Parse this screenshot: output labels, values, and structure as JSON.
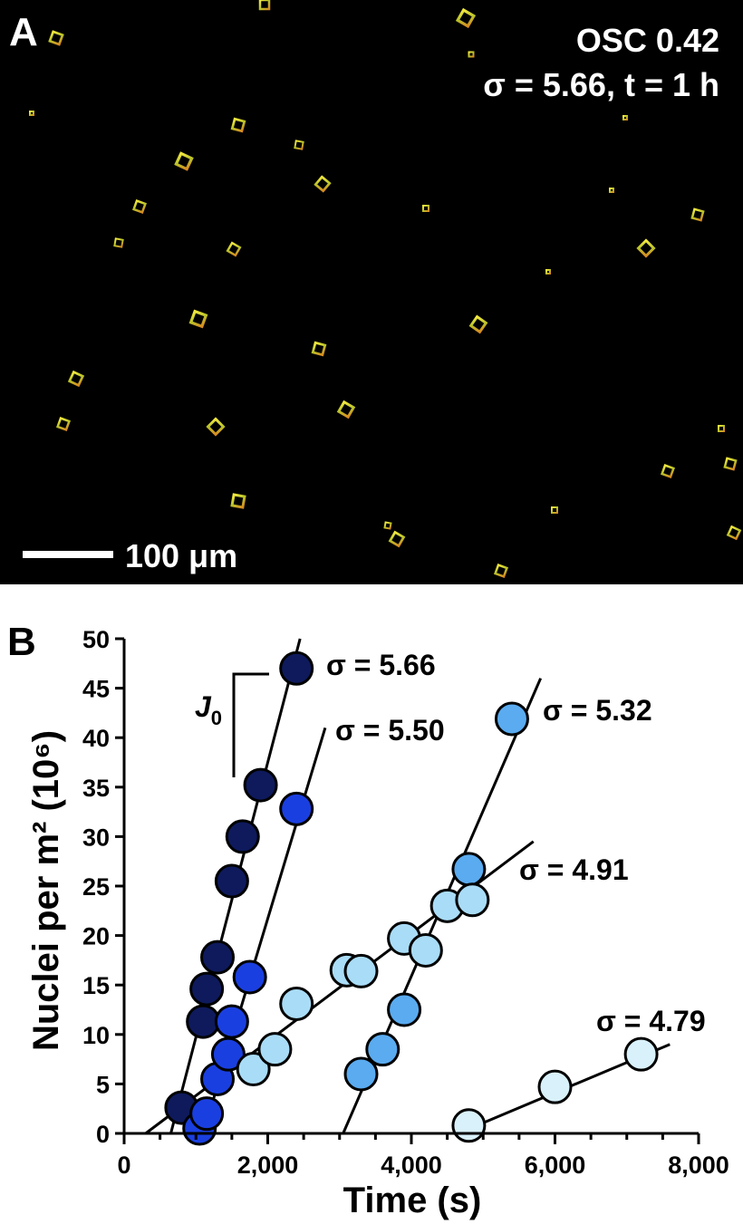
{
  "panel_a": {
    "label": "A",
    "sample": "OSC 0.42",
    "conditions": "σ = 5.66, t = 1 h",
    "scale_bar": "100 μm"
  },
  "panel_b": {
    "label": "B",
    "slope_label": "J",
    "slope_sub": "0"
  },
  "chart_data": {
    "type": "scatter",
    "xlabel": "Time (s)",
    "ylabel": "Nuclei per m² (10⁶)",
    "xlim": [
      0,
      8000
    ],
    "ylim": [
      0,
      50
    ],
    "xticks": [
      0,
      2000,
      4000,
      6000,
      8000
    ],
    "xtick_labels": [
      "0",
      "2,000",
      "4,000",
      "6,000",
      "8,000"
    ],
    "yticks": [
      0,
      5,
      10,
      15,
      20,
      25,
      30,
      35,
      40,
      45,
      50
    ],
    "grid": false,
    "series": [
      {
        "name": "σ = 5.66",
        "color": "#0e1a5c",
        "points": [
          [
            800,
            2.6
          ],
          [
            1100,
            11.3
          ],
          [
            1150,
            14.6
          ],
          [
            1300,
            17.8
          ],
          [
            1500,
            25.5
          ],
          [
            1650,
            30.0
          ],
          [
            1900,
            35.2
          ],
          [
            2400,
            47.0
          ]
        ],
        "fit": [
          [
            650,
            0
          ],
          [
            2450,
            50
          ]
        ]
      },
      {
        "name": "σ = 5.50",
        "color": "#1a3fe0",
        "points": [
          [
            1050,
            0.5
          ],
          [
            1150,
            2.0
          ],
          [
            1300,
            5.5
          ],
          [
            1450,
            8.0
          ],
          [
            1500,
            11.3
          ],
          [
            1750,
            15.8
          ],
          [
            2400,
            32.8
          ]
        ],
        "fit": [
          [
            1100,
            0
          ],
          [
            2800,
            41
          ]
        ]
      },
      {
        "name": "σ = 5.32",
        "color": "#5aabf0",
        "points": [
          [
            3300,
            6.0
          ],
          [
            3600,
            8.5
          ],
          [
            3900,
            12.5
          ],
          [
            4800,
            26.7
          ],
          [
            5400,
            41.9
          ]
        ],
        "fit": [
          [
            3050,
            0
          ],
          [
            5800,
            46
          ]
        ]
      },
      {
        "name": "σ = 4.91",
        "color": "#a9dcf7",
        "points": [
          [
            1800,
            6.5
          ],
          [
            2100,
            8.5
          ],
          [
            2400,
            13.1
          ],
          [
            3100,
            16.5
          ],
          [
            3300,
            16.4
          ],
          [
            3900,
            19.7
          ],
          [
            4200,
            18.5
          ],
          [
            4500,
            23.0
          ],
          [
            4850,
            23.6
          ]
        ],
        "fit": [
          [
            300,
            0
          ],
          [
            5700,
            29.5
          ]
        ]
      },
      {
        "name": "σ = 4.79",
        "color": "#d9f1fb",
        "points": [
          [
            4800,
            0.8
          ],
          [
            6000,
            4.7
          ],
          [
            7200,
            8.0
          ]
        ],
        "fit": [
          [
            4650,
            0
          ],
          [
            7600,
            9.0
          ]
        ]
      }
    ]
  }
}
